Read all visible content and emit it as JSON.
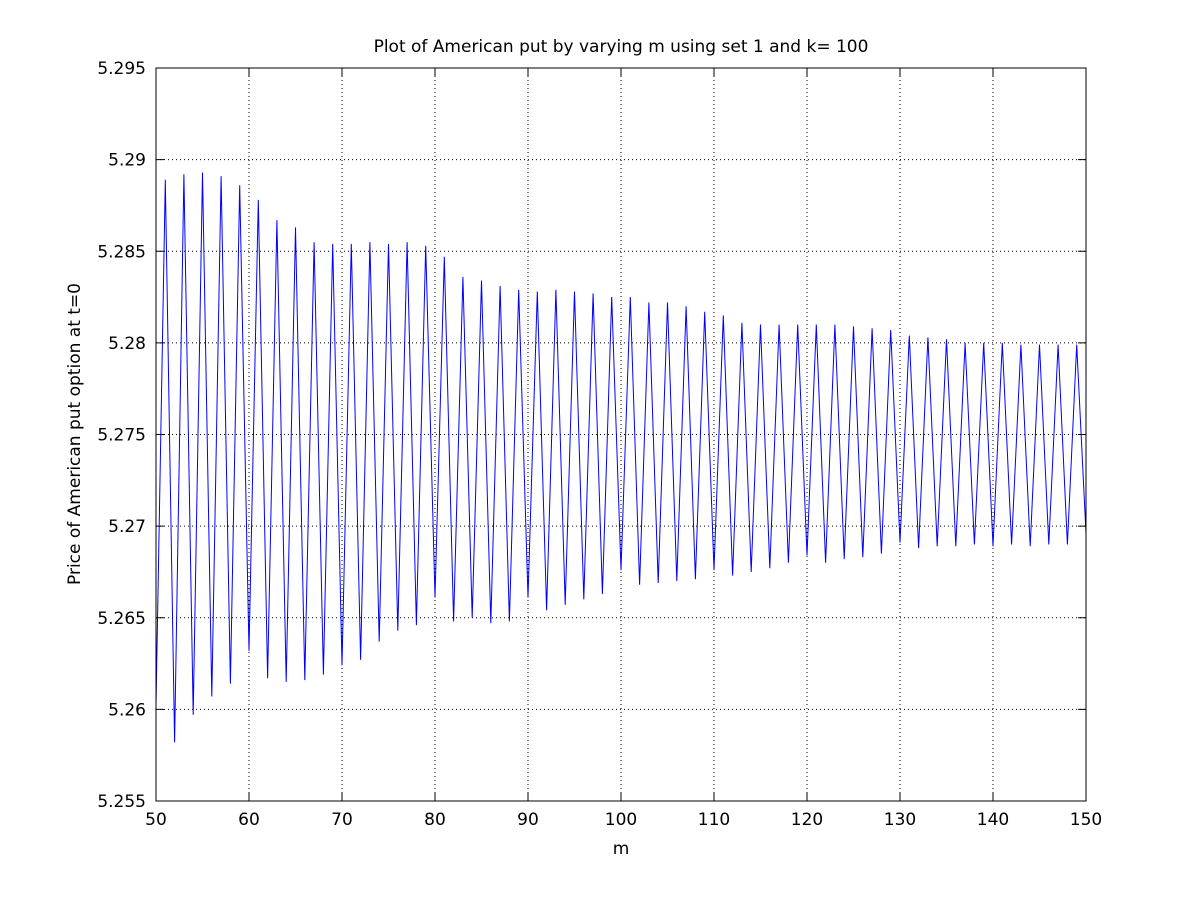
{
  "chart_data": {
    "type": "line",
    "title": "Plot of American put by varying m using set 1 and k= 100",
    "xlabel": "m",
    "ylabel": "Price of American put option at t=0",
    "xlim": [
      50,
      150
    ],
    "ylim": [
      5.255,
      5.295
    ],
    "xticks": [
      50,
      60,
      70,
      80,
      90,
      100,
      110,
      120,
      130,
      140,
      150
    ],
    "yticks": [
      5.255,
      5.26,
      5.265,
      5.27,
      5.275,
      5.28,
      5.285,
      5.29,
      5.295
    ],
    "xtick_labels": [
      "50",
      "60",
      "70",
      "80",
      "90",
      "100",
      "110",
      "120",
      "130",
      "140",
      "150"
    ],
    "ytick_labels": [
      "5.255",
      "5.26",
      "5.265",
      "5.27",
      "5.275",
      "5.28",
      "5.285",
      "5.29",
      "5.295"
    ],
    "grid": true,
    "line_color": "#0000ff",
    "series": [
      {
        "x": [
          50,
          51,
          52,
          53,
          54,
          55,
          56,
          57,
          58,
          59,
          60,
          61,
          62,
          63,
          64,
          65,
          66,
          67,
          68,
          69,
          70,
          71,
          72,
          73,
          74,
          75,
          76,
          77,
          78,
          79,
          80,
          81,
          82,
          83,
          84,
          85,
          86,
          87,
          88,
          89,
          90,
          91,
          92,
          93,
          94,
          95,
          96,
          97,
          98,
          99,
          100,
          101,
          102,
          103,
          104,
          105,
          106,
          107,
          108,
          109,
          110,
          111,
          112,
          113,
          114,
          115,
          116,
          117,
          118,
          119,
          120,
          121,
          122,
          123,
          124,
          125,
          126,
          127,
          128,
          129,
          130,
          131,
          132,
          133,
          134,
          135,
          136,
          137,
          138,
          139,
          140,
          141,
          142,
          143,
          144,
          145,
          146,
          147,
          148,
          149,
          150
        ],
        "values": [
          5.2602,
          5.2889,
          5.2582,
          5.2892,
          5.2597,
          5.2893,
          5.2607,
          5.2891,
          5.2614,
          5.2886,
          5.2632,
          5.2878,
          5.2617,
          5.2867,
          5.2615,
          5.2863,
          5.2616,
          5.2855,
          5.2619,
          5.2854,
          5.2624,
          5.2854,
          5.2627,
          5.2855,
          5.2637,
          5.2854,
          5.2643,
          5.2855,
          5.2646,
          5.2853,
          5.2661,
          5.2847,
          5.2648,
          5.2836,
          5.265,
          5.2834,
          5.2647,
          5.2831,
          5.2648,
          5.2829,
          5.2661,
          5.2828,
          5.2654,
          5.2829,
          5.2657,
          5.2828,
          5.266,
          5.2827,
          5.2663,
          5.2825,
          5.2676,
          5.2825,
          5.2668,
          5.2822,
          5.2669,
          5.2822,
          5.267,
          5.282,
          5.2671,
          5.2817,
          5.2676,
          5.2815,
          5.2673,
          5.2811,
          5.2675,
          5.281,
          5.2677,
          5.281,
          5.268,
          5.281,
          5.2684,
          5.281,
          5.268,
          5.281,
          5.2682,
          5.2809,
          5.2683,
          5.2808,
          5.2685,
          5.2807,
          5.2691,
          5.2804,
          5.2688,
          5.2803,
          5.2689,
          5.2802,
          5.2689,
          5.28,
          5.269,
          5.28,
          5.2689,
          5.28,
          5.269,
          5.2799,
          5.2689,
          5.2799,
          5.269,
          5.2799,
          5.269,
          5.2799,
          5.2696
        ]
      }
    ]
  }
}
